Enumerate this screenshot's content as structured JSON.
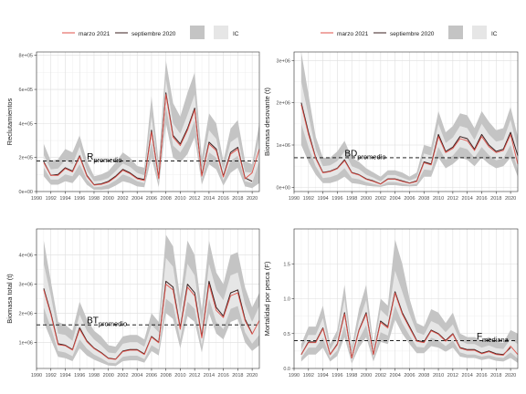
{
  "legend": {
    "series_a": "marzo 2021",
    "series_b": "septiembre 2020",
    "band_a": "",
    "band_b": "IC"
  },
  "colors": {
    "marzo": "#e0524a",
    "septiembre": "#3a1f1f",
    "band_outer": "#c4c4c4",
    "band_inner": "#e6e6e6",
    "grid_major": "#dedede",
    "grid_minor": "#efefef",
    "panel_border": "#333333",
    "text": "#4d4d4d"
  },
  "x_ticks": [
    1990,
    1992,
    1994,
    1996,
    1998,
    2000,
    2002,
    2004,
    2006,
    2008,
    2010,
    2012,
    2014,
    2016,
    2018,
    2020
  ],
  "chart_data": [
    {
      "type": "line",
      "ylabel": "Reclutamientos",
      "xlim": [
        1990,
        2021
      ],
      "ylim": [
        0,
        820000
      ],
      "y_ticks": [
        0,
        200000,
        400000,
        600000,
        800000
      ],
      "y_tick_labels": [
        "0e+00",
        "2e+05",
        "4e+05",
        "6e+05",
        "8e+05"
      ],
      "reference": {
        "value": 180000,
        "label_main": "R",
        "label_sub": "promedio",
        "label_x": 1997
      },
      "x": [
        1991,
        1992,
        1993,
        1994,
        1995,
        1996,
        1997,
        1998,
        1999,
        2000,
        2001,
        2002,
        2003,
        2004,
        2005,
        2006,
        2007,
        2008,
        2009,
        2010,
        2011,
        2012,
        2013,
        2014,
        2015,
        2016,
        2017,
        2018,
        2019,
        2020,
        2021
      ],
      "series": [
        {
          "name": "septiembre 2020",
          "values": [
            175000,
            95000,
            100000,
            140000,
            120000,
            210000,
            95000,
            40000,
            45000,
            60000,
            90000,
            130000,
            110000,
            80000,
            70000,
            360000,
            80000,
            580000,
            330000,
            280000,
            370000,
            490000,
            95000,
            290000,
            250000,
            90000,
            230000,
            260000,
            80000,
            60000,
            null
          ]
        },
        {
          "name": "marzo 2021",
          "values": [
            170000,
            95000,
            95000,
            135000,
            115000,
            205000,
            90000,
            38000,
            42000,
            55000,
            85000,
            125000,
            105000,
            75000,
            65000,
            350000,
            75000,
            570000,
            320000,
            270000,
            360000,
            480000,
            90000,
            280000,
            240000,
            85000,
            220000,
            250000,
            75000,
            110000,
            250000
          ]
        }
      ],
      "ci_outer": {
        "lower": [
          90000,
          40000,
          40000,
          60000,
          50000,
          100000,
          40000,
          10000,
          10000,
          15000,
          35000,
          60000,
          50000,
          30000,
          25000,
          200000,
          25000,
          400000,
          200000,
          170000,
          220000,
          320000,
          40000,
          160000,
          130000,
          35000,
          110000,
          140000,
          30000,
          20000,
          50000
        ],
        "upper": [
          280000,
          180000,
          190000,
          250000,
          230000,
          330000,
          180000,
          90000,
          100000,
          120000,
          170000,
          230000,
          200000,
          150000,
          140000,
          560000,
          170000,
          770000,
          520000,
          440000,
          580000,
          700000,
          200000,
          460000,
          400000,
          180000,
          370000,
          420000,
          180000,
          160000,
          400000
        ]
      },
      "ci_inner": {
        "lower": [
          140000,
          70000,
          70000,
          100000,
          90000,
          160000,
          70000,
          25000,
          28000,
          40000,
          65000,
          100000,
          85000,
          60000,
          50000,
          290000,
          55000,
          500000,
          270000,
          230000,
          300000,
          420000,
          70000,
          230000,
          200000,
          65000,
          180000,
          210000,
          60000,
          50000,
          180000
        ],
        "upper": [
          215000,
          130000,
          135000,
          185000,
          160000,
          265000,
          125000,
          60000,
          65000,
          80000,
          120000,
          165000,
          145000,
          110000,
          95000,
          440000,
          115000,
          660000,
          400000,
          340000,
          450000,
          570000,
          130000,
          360000,
          310000,
          125000,
          290000,
          320000,
          115000,
          110000,
          320000
        ]
      }
    },
    {
      "type": "line",
      "ylabel": "Biomasa desovante (t)",
      "xlim": [
        1990,
        2021
      ],
      "ylim": [
        -100000,
        3200000
      ],
      "y_ticks": [
        0,
        1000000,
        2000000,
        3000000
      ],
      "y_tick_labels": [
        "0e+00",
        "1e+06",
        "2e+06",
        "3e+06"
      ],
      "reference": {
        "value": 700000,
        "label_main": "BD",
        "label_sub": "promedio",
        "label_x": 1997
      },
      "x": [
        1991,
        1992,
        1993,
        1994,
        1995,
        1996,
        1997,
        1998,
        1999,
        2000,
        2001,
        2002,
        2003,
        2004,
        2005,
        2006,
        2007,
        2008,
        2009,
        2010,
        2011,
        2012,
        2013,
        2014,
        2015,
        2016,
        2017,
        2018,
        2019,
        2020,
        2021
      ],
      "series": [
        {
          "name": "septiembre 2020",
          "values": [
            2000000,
            1300000,
            700000,
            350000,
            380000,
            450000,
            650000,
            350000,
            300000,
            200000,
            150000,
            80000,
            200000,
            200000,
            150000,
            100000,
            150000,
            600000,
            550000,
            1250000,
            850000,
            950000,
            1200000,
            1150000,
            900000,
            1250000,
            1000000,
            850000,
            900000,
            1300000,
            750000
          ]
        },
        {
          "name": "marzo 2021",
          "values": [
            1950000,
            1250000,
            680000,
            340000,
            370000,
            440000,
            630000,
            340000,
            290000,
            190000,
            140000,
            75000,
            190000,
            190000,
            140000,
            95000,
            140000,
            580000,
            530000,
            1200000,
            820000,
            920000,
            1150000,
            1100000,
            870000,
            1200000,
            960000,
            820000,
            870000,
            1250000,
            550000
          ]
        }
      ],
      "ci_outer": {
        "lower": [
          1000000,
          600000,
          300000,
          100000,
          100000,
          150000,
          250000,
          100000,
          80000,
          40000,
          20000,
          10000,
          50000,
          50000,
          30000,
          20000,
          30000,
          250000,
          250000,
          700000,
          450000,
          550000,
          700000,
          650000,
          500000,
          700000,
          550000,
          450000,
          500000,
          700000,
          250000
        ],
        "upper": [
          3200000,
          2200000,
          1200000,
          700000,
          700000,
          850000,
          1100000,
          700000,
          600000,
          450000,
          350000,
          250000,
          400000,
          400000,
          350000,
          250000,
          350000,
          1000000,
          950000,
          1800000,
          1300000,
          1450000,
          1750000,
          1700000,
          1400000,
          1800000,
          1550000,
          1350000,
          1400000,
          1900000,
          1200000
        ]
      },
      "ci_inner": {
        "lower": [
          1500000,
          950000,
          500000,
          220000,
          240000,
          300000,
          450000,
          220000,
          190000,
          120000,
          80000,
          40000,
          120000,
          120000,
          90000,
          60000,
          90000,
          420000,
          400000,
          950000,
          650000,
          750000,
          950000,
          900000,
          700000,
          950000,
          760000,
          640000,
          680000,
          1000000,
          400000
        ],
        "upper": [
          2500000,
          1700000,
          900000,
          500000,
          520000,
          620000,
          850000,
          500000,
          430000,
          300000,
          230000,
          140000,
          290000,
          290000,
          230000,
          160000,
          230000,
          800000,
          750000,
          1500000,
          1050000,
          1180000,
          1450000,
          1400000,
          1120000,
          1500000,
          1250000,
          1080000,
          1120000,
          1600000,
          900000
        ]
      }
    },
    {
      "type": "line",
      "ylabel": "Biomasa total (t)",
      "xlim": [
        1990,
        2021
      ],
      "ylim": [
        100000,
        4900000
      ],
      "y_ticks": [
        1000000,
        2000000,
        3000000,
        4000000
      ],
      "y_tick_labels": [
        "1e+06",
        "2e+06",
        "3e+06",
        "4e+06"
      ],
      "reference": {
        "value": 1600000,
        "label_main": "BT",
        "label_sub": "promedio",
        "label_x": 1997
      },
      "x": [
        1991,
        1992,
        1993,
        1994,
        1995,
        1996,
        1997,
        1998,
        1999,
        2000,
        2001,
        2002,
        2003,
        2004,
        2005,
        2006,
        2007,
        2008,
        2009,
        2010,
        2011,
        2012,
        2013,
        2014,
        2015,
        2016,
        2017,
        2018,
        2019,
        2020,
        2021
      ],
      "series": [
        {
          "name": "septiembre 2020",
          "values": [
            2850000,
            2000000,
            950000,
            900000,
            750000,
            1500000,
            1050000,
            800000,
            650000,
            450000,
            420000,
            700000,
            750000,
            750000,
            600000,
            1200000,
            1000000,
            3100000,
            2900000,
            1500000,
            3000000,
            2700000,
            1200000,
            3100000,
            2200000,
            1900000,
            2700000,
            2800000,
            1800000,
            1300000,
            null
          ]
        },
        {
          "name": "marzo 2021",
          "values": [
            2800000,
            1950000,
            920000,
            880000,
            730000,
            1450000,
            1020000,
            780000,
            630000,
            440000,
            410000,
            680000,
            730000,
            730000,
            580000,
            1180000,
            980000,
            3000000,
            2800000,
            1450000,
            2900000,
            2600000,
            1150000,
            3000000,
            2100000,
            1850000,
            2600000,
            2700000,
            1750000,
            1280000,
            1750000
          ]
        }
      ],
      "ci_outer": {
        "lower": [
          1700000,
          1100000,
          500000,
          450000,
          350000,
          800000,
          550000,
          400000,
          300000,
          200000,
          180000,
          350000,
          380000,
          380000,
          300000,
          700000,
          550000,
          2000000,
          1800000,
          800000,
          1900000,
          1700000,
          650000,
          2000000,
          1300000,
          1100000,
          1700000,
          1800000,
          1000000,
          700000,
          900000
        ],
        "upper": [
          4500000,
          3100000,
          1700000,
          1600000,
          1400000,
          2400000,
          1800000,
          1400000,
          1200000,
          900000,
          850000,
          1200000,
          1250000,
          1250000,
          1100000,
          2000000,
          1700000,
          4700000,
          4300000,
          2500000,
          4500000,
          4000000,
          2100000,
          4500000,
          3400000,
          3000000,
          4000000,
          4100000,
          2900000,
          2200000,
          2700000
        ]
      },
      "ci_inner": {
        "lower": [
          2200000,
          1500000,
          700000,
          650000,
          520000,
          1100000,
          780000,
          580000,
          450000,
          300000,
          280000,
          500000,
          540000,
          540000,
          420000,
          900000,
          750000,
          2500000,
          2300000,
          1100000,
          2400000,
          2150000,
          880000,
          2500000,
          1700000,
          1450000,
          2150000,
          2250000,
          1350000,
          950000,
          1250000
        ],
        "upper": [
          3700000,
          2600000,
          1300000,
          1250000,
          1050000,
          1950000,
          1400000,
          1100000,
          900000,
          650000,
          620000,
          950000,
          1000000,
          1000000,
          850000,
          1600000,
          1350000,
          3900000,
          3600000,
          2000000,
          3700000,
          3300000,
          1600000,
          3700000,
          2800000,
          2450000,
          3300000,
          3400000,
          2300000,
          1700000,
          2250000
        ]
      }
    },
    {
      "type": "line",
      "ylabel": "Mortalidad por pesca (F)",
      "xlim": [
        1990,
        2021
      ],
      "ylim": [
        0,
        2.0
      ],
      "y_ticks": [
        0.0,
        0.5,
        1.0,
        1.5
      ],
      "y_tick_labels": [
        "0.0",
        "0.5",
        "1.0",
        "1.5"
      ],
      "reference": {
        "value": 0.4,
        "label_main": "F",
        "label_sub": "mediana",
        "label_x": 2015.3
      },
      "x": [
        1991,
        1992,
        1993,
        1994,
        1995,
        1996,
        1997,
        1998,
        1999,
        2000,
        2001,
        2002,
        2003,
        2004,
        2005,
        2006,
        2007,
        2008,
        2009,
        2010,
        2011,
        2012,
        2013,
        2014,
        2015,
        2016,
        2017,
        2018,
        2019,
        2020,
        2021
      ],
      "series": [
        {
          "name": "septiembre 2020",
          "values": [
            0.2,
            0.38,
            0.38,
            0.58,
            0.2,
            0.35,
            0.8,
            0.15,
            0.55,
            0.8,
            0.2,
            0.68,
            0.6,
            1.1,
            0.8,
            0.6,
            0.4,
            0.38,
            0.55,
            0.5,
            0.4,
            0.5,
            0.3,
            0.27,
            0.27,
            0.22,
            0.25,
            0.21,
            0.2,
            0.3,
            null
          ]
        },
        {
          "name": "marzo 2021",
          "values": [
            0.2,
            0.37,
            0.37,
            0.57,
            0.2,
            0.34,
            0.78,
            0.15,
            0.54,
            0.78,
            0.2,
            0.66,
            0.58,
            1.08,
            0.78,
            0.58,
            0.39,
            0.37,
            0.54,
            0.49,
            0.39,
            0.49,
            0.29,
            0.26,
            0.26,
            0.21,
            0.24,
            0.2,
            0.19,
            0.32,
            0.2
          ]
        }
      ],
      "ci_outer": {
        "lower": [
          0.1,
          0.2,
          0.2,
          0.3,
          0.1,
          0.18,
          0.45,
          0.07,
          0.3,
          0.45,
          0.1,
          0.38,
          0.35,
          0.7,
          0.5,
          0.35,
          0.22,
          0.22,
          0.32,
          0.3,
          0.24,
          0.3,
          0.17,
          0.15,
          0.15,
          0.12,
          0.14,
          0.11,
          0.1,
          0.15,
          0.08
        ],
        "upper": [
          0.35,
          0.6,
          0.6,
          0.9,
          0.35,
          0.55,
          1.2,
          0.3,
          0.85,
          1.2,
          0.35,
          1.0,
          0.9,
          1.85,
          1.5,
          1.0,
          0.65,
          0.6,
          0.85,
          0.8,
          0.65,
          0.8,
          0.5,
          0.45,
          0.45,
          0.4,
          0.45,
          0.38,
          0.37,
          0.55,
          0.5
        ]
      },
      "ci_inner": {
        "lower": [
          0.15,
          0.3,
          0.3,
          0.44,
          0.15,
          0.26,
          0.62,
          0.1,
          0.42,
          0.62,
          0.15,
          0.52,
          0.47,
          0.9,
          0.65,
          0.47,
          0.31,
          0.3,
          0.44,
          0.4,
          0.32,
          0.4,
          0.23,
          0.2,
          0.2,
          0.17,
          0.19,
          0.16,
          0.15,
          0.23,
          0.14
        ],
        "upper": [
          0.27,
          0.48,
          0.48,
          0.72,
          0.27,
          0.45,
          1.0,
          0.22,
          0.68,
          0.98,
          0.27,
          0.84,
          0.74,
          1.4,
          1.1,
          0.78,
          0.52,
          0.48,
          0.68,
          0.63,
          0.52,
          0.63,
          0.4,
          0.35,
          0.35,
          0.3,
          0.33,
          0.29,
          0.28,
          0.42,
          0.35
        ]
      }
    }
  ]
}
